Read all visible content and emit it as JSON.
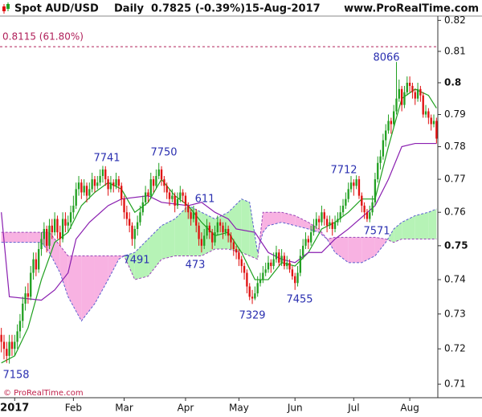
{
  "chart_data": {
    "type": "candlestick",
    "title": "Spot AUD/USD",
    "period": "Daily",
    "last": "0.7825 (-0.39%)",
    "date": "15-Aug-2017",
    "source": "www.ProRealTime.com",
    "footer": "© ProRealTime.com",
    "log": true,
    "ylim": [
      0.7062,
      0.8214
    ],
    "yticks": [
      0.71,
      0.72,
      0.73,
      0.74,
      0.75,
      0.76,
      0.77,
      0.78,
      0.79,
      0.8,
      0.81,
      0.82
    ],
    "candle_colors": {
      "up": "#22a022",
      "down": "#e01010"
    },
    "categories": [
      null,
      null,
      null,
      null,
      null,
      "2017",
      null,
      null,
      null,
      null,
      null,
      null,
      null,
      null,
      null,
      null,
      null,
      null,
      null,
      null,
      null,
      null,
      null,
      null,
      null,
      null,
      null,
      "Feb",
      null,
      null,
      null,
      null,
      null,
      null,
      null,
      null,
      null,
      null,
      null,
      null,
      null,
      null,
      null,
      null,
      null,
      null,
      "Mar",
      null,
      null,
      null,
      null,
      null,
      null,
      null,
      null,
      null,
      null,
      null,
      null,
      null,
      null,
      null,
      null,
      null,
      null,
      null,
      null,
      null,
      null,
      "Apr",
      null,
      null,
      null,
      null,
      null,
      null,
      null,
      null,
      null,
      null,
      null,
      null,
      null,
      null,
      null,
      null,
      null,
      null,
      null,
      "May",
      null,
      null,
      null,
      null,
      null,
      null,
      null,
      null,
      null,
      null,
      null,
      null,
      null,
      null,
      null,
      null,
      null,
      null,
      null,
      null,
      "Jun",
      null,
      null,
      null,
      null,
      null,
      null,
      null,
      null,
      null,
      null,
      null,
      null,
      null,
      null,
      null,
      null,
      null,
      null,
      null,
      null,
      null,
      "Jul",
      null,
      null,
      null,
      null,
      null,
      null,
      null,
      null,
      null,
      null,
      null,
      null,
      null,
      null,
      null,
      null,
      null,
      null,
      null,
      null,
      "Aug",
      null,
      null,
      null,
      null,
      null,
      null,
      null,
      null,
      null,
      null
    ],
    "ohlc": [
      [
        0.724,
        0.726,
        0.719,
        0.722
      ],
      [
        0.722,
        0.724,
        0.717,
        0.72
      ],
      [
        0.72,
        0.722,
        0.716,
        0.718
      ],
      [
        0.718,
        0.724,
        0.7158,
        0.722
      ],
      [
        0.722,
        0.724,
        0.718,
        0.72
      ],
      [
        0.72,
        0.724,
        0.718,
        0.722
      ],
      [
        0.722,
        0.727,
        0.72,
        0.725
      ],
      [
        0.725,
        0.73,
        0.723,
        0.728
      ],
      [
        0.728,
        0.735,
        0.726,
        0.733
      ],
      [
        0.733,
        0.738,
        0.731,
        0.736
      ],
      [
        0.736,
        0.739,
        0.733,
        0.735
      ],
      [
        0.735,
        0.744,
        0.734,
        0.742
      ],
      [
        0.742,
        0.748,
        0.74,
        0.746
      ],
      [
        0.746,
        0.748,
        0.741,
        0.743
      ],
      [
        0.743,
        0.751,
        0.742,
        0.749
      ],
      [
        0.749,
        0.754,
        0.747,
        0.752
      ],
      [
        0.752,
        0.757,
        0.75,
        0.755
      ],
      [
        0.755,
        0.756,
        0.748,
        0.75
      ],
      [
        0.75,
        0.758,
        0.749,
        0.756
      ],
      [
        0.756,
        0.758,
        0.752,
        0.754
      ],
      [
        0.754,
        0.76,
        0.753,
        0.758
      ],
      [
        0.758,
        0.759,
        0.752,
        0.754
      ],
      [
        0.754,
        0.756,
        0.75,
        0.752
      ],
      [
        0.752,
        0.76,
        0.751,
        0.758
      ],
      [
        0.758,
        0.76,
        0.754,
        0.756
      ],
      [
        0.756,
        0.759,
        0.754,
        0.757
      ],
      [
        0.757,
        0.762,
        0.755,
        0.76
      ],
      [
        0.76,
        0.765,
        0.758,
        0.762
      ],
      [
        0.762,
        0.769,
        0.761,
        0.767
      ],
      [
        0.767,
        0.771,
        0.765,
        0.769
      ],
      [
        0.769,
        0.77,
        0.764,
        0.766
      ],
      [
        0.766,
        0.77,
        0.765,
        0.768
      ],
      [
        0.768,
        0.769,
        0.763,
        0.765
      ],
      [
        0.765,
        0.769,
        0.764,
        0.767
      ],
      [
        0.767,
        0.772,
        0.766,
        0.77
      ],
      [
        0.77,
        0.771,
        0.766,
        0.768
      ],
      [
        0.768,
        0.771,
        0.767,
        0.769
      ],
      [
        0.769,
        0.773,
        0.768,
        0.771
      ],
      [
        0.771,
        0.7741,
        0.769,
        0.773
      ],
      [
        0.773,
        0.774,
        0.768,
        0.77
      ],
      [
        0.77,
        0.771,
        0.765,
        0.767
      ],
      [
        0.767,
        0.771,
        0.766,
        0.769
      ],
      [
        0.769,
        0.77,
        0.766,
        0.768
      ],
      [
        0.768,
        0.772,
        0.767,
        0.77
      ],
      [
        0.77,
        0.771,
        0.766,
        0.768
      ],
      [
        0.768,
        0.769,
        0.762,
        0.764
      ],
      [
        0.764,
        0.765,
        0.758,
        0.76
      ],
      [
        0.76,
        0.762,
        0.756,
        0.758
      ],
      [
        0.758,
        0.76,
        0.754,
        0.756
      ],
      [
        0.756,
        0.757,
        0.75,
        0.752
      ],
      [
        0.752,
        0.756,
        0.7491,
        0.755
      ],
      [
        0.755,
        0.759,
        0.753,
        0.757
      ],
      [
        0.757,
        0.762,
        0.756,
        0.76
      ],
      [
        0.76,
        0.765,
        0.759,
        0.763
      ],
      [
        0.763,
        0.768,
        0.762,
        0.766
      ],
      [
        0.766,
        0.767,
        0.763,
        0.765
      ],
      [
        0.765,
        0.772,
        0.764,
        0.77
      ],
      [
        0.77,
        0.771,
        0.766,
        0.768
      ],
      [
        0.768,
        0.773,
        0.767,
        0.771
      ],
      [
        0.771,
        0.775,
        0.77,
        0.773
      ],
      [
        0.773,
        0.774,
        0.768,
        0.77
      ],
      [
        0.77,
        0.771,
        0.766,
        0.768
      ],
      [
        0.768,
        0.769,
        0.764,
        0.766
      ],
      [
        0.766,
        0.767,
        0.762,
        0.764
      ],
      [
        0.764,
        0.767,
        0.763,
        0.765
      ],
      [
        0.765,
        0.766,
        0.76,
        0.762
      ],
      [
        0.762,
        0.766,
        0.761,
        0.764
      ],
      [
        0.764,
        0.768,
        0.763,
        0.766
      ],
      [
        0.766,
        0.767,
        0.763,
        0.765
      ],
      [
        0.765,
        0.766,
        0.76,
        0.762
      ],
      [
        0.762,
        0.763,
        0.758,
        0.76
      ],
      [
        0.76,
        0.761,
        0.756,
        0.758
      ],
      [
        0.758,
        0.762,
        0.757,
        0.76
      ],
      [
        0.76,
        0.761,
        0.754,
        0.756
      ],
      [
        0.756,
        0.757,
        0.75,
        0.752
      ],
      [
        0.752,
        0.754,
        0.748,
        0.75
      ],
      [
        0.75,
        0.755,
        0.749,
        0.753
      ],
      [
        0.753,
        0.758,
        0.752,
        0.756
      ],
      [
        0.756,
        0.757,
        0.752,
        0.754
      ],
      [
        0.754,
        0.755,
        0.749,
        0.751
      ],
      [
        0.751,
        0.756,
        0.75,
        0.754
      ],
      [
        0.754,
        0.759,
        0.753,
        0.757
      ],
      [
        0.757,
        0.758,
        0.754,
        0.756
      ],
      [
        0.756,
        0.757,
        0.752,
        0.754
      ],
      [
        0.754,
        0.757,
        0.753,
        0.755
      ],
      [
        0.755,
        0.756,
        0.751,
        0.753
      ],
      [
        0.753,
        0.754,
        0.749,
        0.751
      ],
      [
        0.751,
        0.752,
        0.747,
        0.749
      ],
      [
        0.749,
        0.75,
        0.746,
        0.748
      ],
      [
        0.748,
        0.749,
        0.744,
        0.746
      ],
      [
        0.746,
        0.747,
        0.742,
        0.744
      ],
      [
        0.744,
        0.745,
        0.74,
        0.742
      ],
      [
        0.742,
        0.743,
        0.736,
        0.738
      ],
      [
        0.738,
        0.739,
        0.734,
        0.735
      ],
      [
        0.735,
        0.737,
        0.7329,
        0.7345
      ],
      [
        0.7345,
        0.738,
        0.734,
        0.736
      ],
      [
        0.736,
        0.741,
        0.735,
        0.739
      ],
      [
        0.739,
        0.742,
        0.738,
        0.74
      ],
      [
        0.74,
        0.744,
        0.739,
        0.742
      ],
      [
        0.742,
        0.745,
        0.741,
        0.743
      ],
      [
        0.743,
        0.747,
        0.742,
        0.745
      ],
      [
        0.745,
        0.746,
        0.742,
        0.744
      ],
      [
        0.744,
        0.748,
        0.743,
        0.746
      ],
      [
        0.746,
        0.75,
        0.745,
        0.748
      ],
      [
        0.748,
        0.749,
        0.744,
        0.745
      ],
      [
        0.745,
        0.749,
        0.744,
        0.747
      ],
      [
        0.747,
        0.748,
        0.743,
        0.744
      ],
      [
        0.744,
        0.747,
        0.743,
        0.745
      ],
      [
        0.745,
        0.746,
        0.742,
        0.743
      ],
      [
        0.743,
        0.744,
        0.74,
        0.741
      ],
      [
        0.741,
        0.742,
        0.737,
        0.739
      ],
      [
        0.739,
        0.744,
        0.738,
        0.742
      ],
      [
        0.742,
        0.749,
        0.741,
        0.747
      ],
      [
        0.747,
        0.752,
        0.746,
        0.75
      ],
      [
        0.75,
        0.754,
        0.749,
        0.752
      ],
      [
        0.752,
        0.753,
        0.749,
        0.751
      ],
      [
        0.751,
        0.756,
        0.75,
        0.754
      ],
      [
        0.754,
        0.758,
        0.753,
        0.756
      ],
      [
        0.756,
        0.76,
        0.755,
        0.758
      ],
      [
        0.758,
        0.759,
        0.755,
        0.757
      ],
      [
        0.757,
        0.762,
        0.756,
        0.76
      ],
      [
        0.76,
        0.761,
        0.756,
        0.758
      ],
      [
        0.758,
        0.759,
        0.754,
        0.756
      ],
      [
        0.756,
        0.759,
        0.755,
        0.757
      ],
      [
        0.757,
        0.758,
        0.753,
        0.755
      ],
      [
        0.755,
        0.759,
        0.754,
        0.757
      ],
      [
        0.757,
        0.76,
        0.756,
        0.758
      ],
      [
        0.758,
        0.762,
        0.757,
        0.76
      ],
      [
        0.76,
        0.764,
        0.759,
        0.762
      ],
      [
        0.762,
        0.766,
        0.761,
        0.764
      ],
      [
        0.764,
        0.769,
        0.763,
        0.767
      ],
      [
        0.767,
        0.771,
        0.766,
        0.769
      ],
      [
        0.769,
        0.77,
        0.765,
        0.768
      ],
      [
        0.768,
        0.7712,
        0.767,
        0.77
      ],
      [
        0.77,
        0.771,
        0.764,
        0.765
      ],
      [
        0.765,
        0.766,
        0.76,
        0.762
      ],
      [
        0.762,
        0.763,
        0.758,
        0.76
      ],
      [
        0.76,
        0.761,
        0.7571,
        0.758
      ],
      [
        0.758,
        0.762,
        0.757,
        0.76
      ],
      [
        0.76,
        0.765,
        0.759,
        0.763
      ],
      [
        0.763,
        0.772,
        0.762,
        0.77
      ],
      [
        0.77,
        0.777,
        0.769,
        0.775
      ],
      [
        0.775,
        0.779,
        0.773,
        0.777
      ],
      [
        0.777,
        0.784,
        0.776,
        0.782
      ],
      [
        0.782,
        0.787,
        0.78,
        0.785
      ],
      [
        0.785,
        0.79,
        0.784,
        0.788
      ],
      [
        0.788,
        0.789,
        0.784,
        0.787
      ],
      [
        0.787,
        0.793,
        0.786,
        0.791
      ],
      [
        0.791,
        0.8066,
        0.79,
        0.795
      ],
      [
        0.795,
        0.801,
        0.794,
        0.798
      ],
      [
        0.798,
        0.799,
        0.791,
        0.793
      ],
      [
        0.793,
        0.799,
        0.792,
        0.797
      ],
      [
        0.797,
        0.802,
        0.796,
        0.8
      ],
      [
        0.8,
        0.802,
        0.797,
        0.799
      ],
      [
        0.799,
        0.8,
        0.795,
        0.797
      ],
      [
        0.797,
        0.798,
        0.793,
        0.795
      ],
      [
        0.795,
        0.8,
        0.794,
        0.798
      ],
      [
        0.798,
        0.799,
        0.794,
        0.796
      ],
      [
        0.796,
        0.797,
        0.789,
        0.79
      ],
      [
        0.79,
        0.793,
        0.789,
        0.791
      ],
      [
        0.791,
        0.792,
        0.787,
        0.789
      ],
      [
        0.789,
        0.79,
        0.785,
        0.787
      ],
      [
        0.787,
        0.79,
        0.786,
        0.788
      ],
      [
        0.788,
        0.789,
        0.781,
        0.7825
      ]
    ],
    "cloud": {
      "x": [
        0,
        10,
        15,
        18,
        22,
        25,
        30,
        35,
        40,
        44,
        46,
        50,
        55,
        60,
        65,
        70,
        75,
        80,
        85,
        90,
        93,
        96,
        98,
        100,
        105,
        110,
        115,
        119,
        122,
        125,
        130,
        135,
        140,
        144,
        147,
        150,
        155,
        160,
        163
      ],
      "span_a": [
        0.751,
        0.751,
        0.751,
        0.748,
        0.742,
        0.735,
        0.728,
        0.733,
        0.74,
        0.746,
        0.747,
        0.748,
        0.752,
        0.756,
        0.758,
        0.762,
        0.76,
        0.758,
        0.76,
        0.764,
        0.763,
        0.748,
        0.754,
        0.756,
        0.757,
        0.756,
        0.755,
        0.754,
        0.752,
        0.748,
        0.745,
        0.745,
        0.747,
        0.751,
        0.755,
        0.757,
        0.759,
        0.76,
        0.761
      ],
      "span_b": [
        0.754,
        0.754,
        0.754,
        0.754,
        0.75,
        0.747,
        0.747,
        0.747,
        0.747,
        0.747,
        0.747,
        0.74,
        0.741,
        0.746,
        0.747,
        0.747,
        0.747,
        0.749,
        0.749,
        0.748,
        0.747,
        0.746,
        0.76,
        0.76,
        0.76,
        0.759,
        0.757,
        0.755,
        0.752,
        0.7525,
        0.7525,
        0.7525,
        0.7525,
        0.752,
        0.751,
        0.752,
        0.752,
        0.752,
        0.752
      ],
      "colors": [
        "#b6f3b6",
        "#f8b2e2"
      ],
      "line_colors": [
        "#5a5fd0",
        "#9a45b8"
      ]
    },
    "lines": [
      {
        "color": "#1fa01f",
        "x": [
          0,
          5,
          10,
          15,
          20,
          25,
          30,
          35,
          40,
          45,
          50,
          55,
          60,
          65,
          70,
          75,
          80,
          85,
          90,
          95,
          100,
          105,
          110,
          115,
          120,
          125,
          130,
          135,
          140,
          145,
          150,
          155,
          160,
          163
        ],
        "values": [
          0.716,
          0.718,
          0.726,
          0.74,
          0.751,
          0.754,
          0.762,
          0.766,
          0.769,
          0.767,
          0.76,
          0.763,
          0.77,
          0.765,
          0.762,
          0.757,
          0.753,
          0.754,
          0.748,
          0.74,
          0.74,
          0.745,
          0.744,
          0.748,
          0.755,
          0.757,
          0.76,
          0.764,
          0.764,
          0.78,
          0.795,
          0.798,
          0.796,
          0.792
        ]
      },
      {
        "color": "#8a1fb0",
        "x": [
          0,
          3,
          15,
          20,
          25,
          28,
          33,
          40,
          45,
          55,
          60,
          70,
          75,
          80,
          85,
          88,
          95,
          100,
          105,
          110,
          115,
          120,
          125,
          130,
          140,
          145,
          150,
          155,
          163
        ],
        "values": [
          0.76,
          0.735,
          0.734,
          0.737,
          0.742,
          0.752,
          0.757,
          0.762,
          0.764,
          0.765,
          0.763,
          0.762,
          0.763,
          0.76,
          0.758,
          0.755,
          0.754,
          0.748,
          0.746,
          0.745,
          0.748,
          0.748,
          0.752,
          0.755,
          0.762,
          0.77,
          0.78,
          0.781,
          0.781
        ]
      }
    ],
    "level": {
      "value": 0.8115,
      "label": "0.8115 (61.80%)",
      "color": "#b0205a"
    },
    "annotations": [
      "8066",
      "7741",
      "7750",
      "7712",
      "611",
      "7491",
      "473",
      "7571",
      "7329",
      "7455",
      "7158"
    ]
  }
}
